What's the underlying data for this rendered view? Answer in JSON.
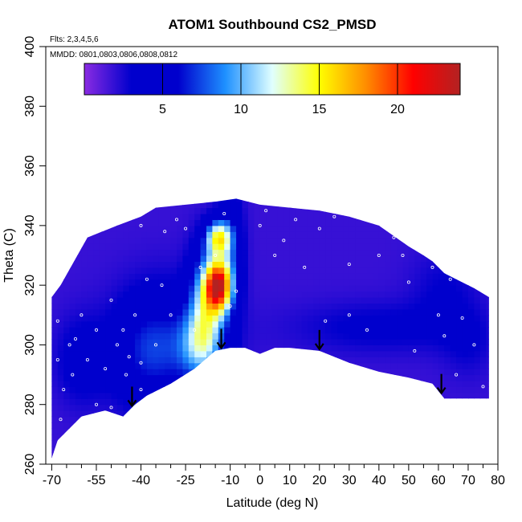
{
  "chart_data": {
    "type": "heatmap",
    "title": "ATOM1 Southbound CS2_PMSD",
    "flights_note": "Flts: 2,3,4,5,6",
    "dates_note": "MMDD: 0801,0803,0806,0808,0812",
    "xlabel": "Latitude (deg N)",
    "ylabel": "Theta (C)",
    "xlim": [
      -72,
      80
    ],
    "ylim": [
      260,
      400
    ],
    "x_ticks": [
      -70,
      -55,
      -40,
      -25,
      -10,
      0,
      10,
      20,
      30,
      40,
      50,
      60,
      70,
      80
    ],
    "x_tick_labels": [
      "-70",
      "-55",
      "-40",
      "-25",
      "-10",
      "0",
      "10",
      "20",
      "30",
      "40",
      "50",
      "60",
      "70",
      "80"
    ],
    "x_minor_ticks": [
      -65,
      -60,
      -50,
      -45,
      -35,
      -30,
      -20,
      -15,
      -5,
      5,
      15,
      25,
      35,
      45,
      55,
      65,
      75
    ],
    "y_ticks": [
      260,
      280,
      300,
      320,
      340,
      360,
      380,
      400
    ],
    "y_tick_labels": [
      "260",
      "280",
      "300",
      "320",
      "340",
      "360",
      "380",
      "400"
    ],
    "colorbar": {
      "min": 0,
      "max": 24,
      "ticks": [
        5,
        10,
        15,
        20
      ],
      "tick_labels": [
        "5",
        "10",
        "15",
        "20"
      ],
      "colors": [
        "#8a2be2",
        "#0000cd",
        "#0000cd",
        "#1e90ff",
        "#e0ffff",
        "#ffff00",
        "#ff8c00",
        "#ff0000",
        "#b22222"
      ]
    },
    "lower_boundary": {
      "lat": [
        -70,
        -68,
        -60,
        -52,
        -46,
        -42,
        -38,
        -30,
        -22,
        -15,
        -10,
        -5,
        0,
        5,
        10,
        20,
        30,
        40,
        50,
        58,
        62,
        66,
        70,
        77
      ],
      "theta": [
        262,
        268,
        276,
        278,
        276,
        280,
        283,
        287,
        292,
        298,
        299,
        299,
        297,
        299,
        299,
        298,
        294,
        291,
        289,
        287,
        282,
        282,
        282,
        282
      ]
    },
    "upper_boundary": {
      "lat": [
        -70,
        -67,
        -58,
        -48,
        -40,
        -35,
        -25,
        -15,
        -8,
        0,
        10,
        20,
        30,
        40,
        50,
        55,
        58,
        62,
        66,
        72,
        77
      ],
      "theta": [
        316,
        320,
        336,
        340,
        343,
        346,
        347,
        348,
        349,
        347,
        346,
        345,
        343,
        340,
        333,
        330,
        328,
        324,
        322,
        319,
        316
      ]
    },
    "blobs": [
      {
        "lat": -14,
        "theta": 320,
        "sigma_lat": 3,
        "sigma_theta": 6,
        "value": 17
      },
      {
        "lat": -14,
        "theta": 336,
        "sigma_lat": 3,
        "sigma_theta": 4,
        "value": 11
      },
      {
        "lat": -18,
        "theta": 315,
        "sigma_lat": 4,
        "sigma_theta": 12,
        "value": 8
      },
      {
        "lat": -20,
        "theta": 300,
        "sigma_lat": 5,
        "sigma_theta": 8,
        "value": 6
      },
      {
        "lat": -38,
        "theta": 298,
        "sigma_lat": 8,
        "sigma_theta": 12,
        "value": 3
      },
      {
        "lat": -60,
        "theta": 295,
        "sigma_lat": 6,
        "sigma_theta": 10,
        "value": 2
      },
      {
        "lat": -30,
        "theta": 300,
        "sigma_lat": 12,
        "sigma_theta": 14,
        "value": 3
      },
      {
        "lat": -10,
        "theta": 330,
        "sigma_lat": 3,
        "sigma_theta": 15,
        "value": 4
      },
      {
        "lat": 40,
        "theta": 306,
        "sigma_lat": 20,
        "sigma_theta": 6,
        "value": 1.5
      },
      {
        "lat": 62,
        "theta": 318,
        "sigma_lat": 8,
        "sigma_theta": 10,
        "value": 1.2
      },
      {
        "lat": 70,
        "theta": 300,
        "sigma_lat": 6,
        "sigma_theta": 8,
        "value": 1.0
      }
    ],
    "flight_arrows_lat": [
      -43,
      -13,
      20,
      61
    ],
    "sample_points": [
      [
        -60,
        310
      ],
      [
        -55,
        305
      ],
      [
        -50,
        315
      ],
      [
        -48,
        300
      ],
      [
        -45,
        290
      ],
      [
        -42,
        310
      ],
      [
        -40,
        285
      ],
      [
        -38,
        322
      ],
      [
        -35,
        300
      ],
      [
        -58,
        295
      ],
      [
        -62,
        302
      ],
      [
        -66,
        285
      ],
      [
        -52,
        292
      ],
      [
        -46,
        305
      ],
      [
        -44,
        296
      ],
      [
        -55,
        280
      ],
      [
        -50,
        279
      ],
      [
        -36,
        283
      ],
      [
        -40,
        340
      ],
      [
        -32,
        338
      ],
      [
        -28,
        342
      ],
      [
        -25,
        339
      ],
      [
        -20,
        326
      ],
      [
        -15,
        330
      ],
      [
        -12,
        344
      ],
      [
        -30,
        310
      ],
      [
        -22,
        305
      ],
      [
        -8,
        318
      ],
      [
        0,
        340
      ],
      [
        2,
        345
      ],
      [
        8,
        335
      ],
      [
        12,
        342
      ],
      [
        20,
        339
      ],
      [
        25,
        343
      ],
      [
        22,
        308
      ],
      [
        30,
        310
      ],
      [
        36,
        305
      ],
      [
        45,
        336
      ],
      [
        48,
        330
      ],
      [
        55,
        332
      ],
      [
        58,
        326
      ],
      [
        60,
        310
      ],
      [
        64,
        322
      ],
      [
        68,
        309
      ],
      [
        72,
        300
      ],
      [
        75,
        286
      ],
      [
        52,
        298
      ],
      [
        -68,
        308
      ],
      [
        -68,
        295
      ],
      [
        -67,
        275
      ],
      [
        -64,
        300
      ],
      [
        -63,
        290
      ],
      [
        -40,
        294
      ],
      [
        -33,
        320
      ],
      [
        -10,
        313
      ],
      [
        5,
        330
      ],
      [
        15,
        326
      ],
      [
        30,
        327
      ],
      [
        40,
        330
      ],
      [
        50,
        321
      ],
      [
        62,
        303
      ],
      [
        66,
        290
      ]
    ]
  }
}
